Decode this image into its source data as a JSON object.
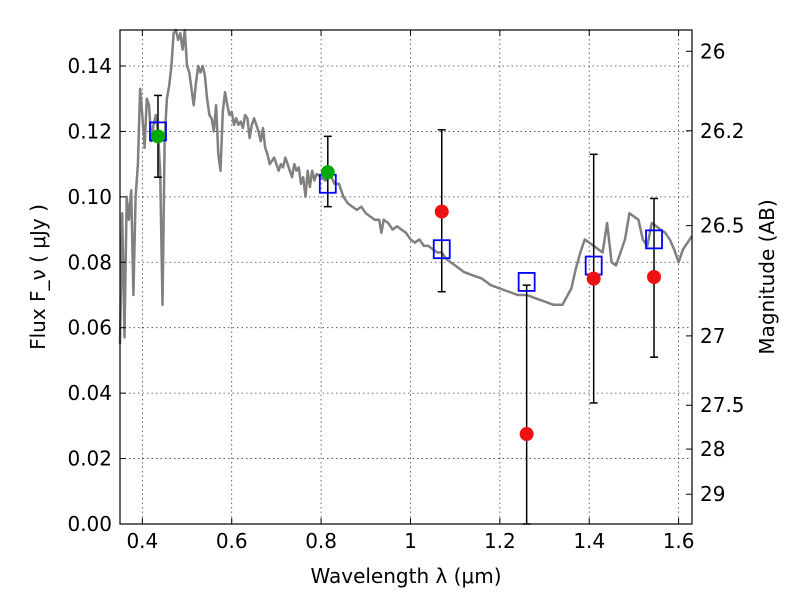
{
  "chart_data": {
    "type": "scatter",
    "xlabel": "Wavelength  λ (μm)",
    "ylabel": "Flux  F_ν  ( μJy )",
    "ylabel_right": "Magnitude (AB)",
    "xlim": [
      0.35,
      1.63
    ],
    "ylim": [
      0.0,
      0.151
    ],
    "grid": true,
    "x_ticks": [
      0.4,
      0.6,
      0.8,
      1.0,
      1.2,
      1.4,
      1.6
    ],
    "x_tick_labels": [
      "0.4",
      "0.6",
      "0.8",
      "1",
      "1.2",
      "1.4",
      "1.6"
    ],
    "y_ticks": [
      0.0,
      0.02,
      0.04,
      0.06,
      0.08,
      0.1,
      0.12,
      0.14
    ],
    "y_tick_labels": [
      "0.00",
      "0.02",
      "0.04",
      "0.06",
      "0.08",
      "0.10",
      "0.12",
      "0.14"
    ],
    "right_ticks": [
      {
        "label": "26",
        "flux": 0.1445
      },
      {
        "label": "26.2",
        "flux": 0.1202
      },
      {
        "label": "26.5",
        "flux": 0.0912
      },
      {
        "label": "27",
        "flux": 0.0575
      },
      {
        "label": "27.5",
        "flux": 0.0363
      },
      {
        "label": "28",
        "flux": 0.0229
      },
      {
        "label": "29",
        "flux": 0.0091
      }
    ],
    "colors": {
      "model": "#808080",
      "green": "#00aa00",
      "red": "#ee1111",
      "box": "#0000ff",
      "errorbar": "#000000"
    },
    "series": [
      {
        "kind": "line",
        "points": [
          [
            0.35,
            0.055
          ],
          [
            0.355,
            0.095
          ],
          [
            0.36,
            0.057
          ],
          [
            0.365,
            0.1
          ],
          [
            0.37,
            0.093
          ],
          [
            0.375,
            0.102
          ],
          [
            0.38,
            0.07
          ],
          [
            0.385,
            0.1
          ],
          [
            0.39,
            0.11
          ],
          [
            0.395,
            0.133
          ],
          [
            0.4,
            0.125
          ],
          [
            0.405,
            0.115
          ],
          [
            0.41,
            0.13
          ],
          [
            0.415,
            0.128
          ],
          [
            0.42,
            0.117
          ],
          [
            0.425,
            0.122
          ],
          [
            0.43,
            0.125
          ],
          [
            0.435,
            0.12
          ],
          [
            0.44,
            0.107
          ],
          [
            0.445,
            0.067
          ],
          [
            0.45,
            0.118
          ],
          [
            0.455,
            0.13
          ],
          [
            0.46,
            0.134
          ],
          [
            0.465,
            0.14
          ],
          [
            0.47,
            0.15
          ],
          [
            0.475,
            0.152
          ],
          [
            0.48,
            0.148
          ],
          [
            0.485,
            0.15
          ],
          [
            0.49,
            0.145
          ],
          [
            0.495,
            0.151
          ],
          [
            0.5,
            0.14
          ],
          [
            0.505,
            0.138
          ],
          [
            0.51,
            0.133
          ],
          [
            0.515,
            0.128
          ],
          [
            0.52,
            0.135
          ],
          [
            0.525,
            0.14
          ],
          [
            0.53,
            0.138
          ],
          [
            0.535,
            0.14
          ],
          [
            0.54,
            0.137
          ],
          [
            0.545,
            0.13
          ],
          [
            0.55,
            0.125
          ],
          [
            0.555,
            0.124
          ],
          [
            0.56,
            0.12
          ],
          [
            0.565,
            0.128
          ],
          [
            0.57,
            0.113
          ],
          [
            0.575,
            0.108
          ],
          [
            0.58,
            0.126
          ],
          [
            0.585,
            0.132
          ],
          [
            0.59,
            0.128
          ],
          [
            0.595,
            0.125
          ],
          [
            0.6,
            0.126
          ],
          [
            0.605,
            0.122
          ],
          [
            0.61,
            0.124
          ],
          [
            0.615,
            0.122
          ],
          [
            0.62,
            0.123
          ],
          [
            0.625,
            0.121
          ],
          [
            0.63,
            0.125
          ],
          [
            0.635,
            0.124
          ],
          [
            0.64,
            0.118
          ],
          [
            0.645,
            0.122
          ],
          [
            0.65,
            0.124
          ],
          [
            0.655,
            0.122
          ],
          [
            0.66,
            0.12
          ],
          [
            0.665,
            0.117
          ],
          [
            0.67,
            0.121
          ],
          [
            0.675,
            0.115
          ],
          [
            0.68,
            0.113
          ],
          [
            0.685,
            0.11
          ],
          [
            0.69,
            0.111
          ],
          [
            0.695,
            0.112
          ],
          [
            0.7,
            0.11
          ],
          [
            0.705,
            0.108
          ],
          [
            0.71,
            0.11
          ],
          [
            0.715,
            0.109
          ],
          [
            0.72,
            0.112
          ],
          [
            0.725,
            0.11
          ],
          [
            0.73,
            0.108
          ],
          [
            0.735,
            0.106
          ],
          [
            0.74,
            0.11
          ],
          [
            0.745,
            0.108
          ],
          [
            0.75,
            0.109
          ],
          [
            0.755,
            0.104
          ],
          [
            0.76,
            0.106
          ],
          [
            0.765,
            0.1
          ],
          [
            0.77,
            0.108
          ],
          [
            0.775,
            0.103
          ],
          [
            0.78,
            0.108
          ],
          [
            0.785,
            0.105
          ],
          [
            0.79,
            0.107
          ],
          [
            0.8,
            0.106
          ],
          [
            0.81,
            0.105
          ],
          [
            0.82,
            0.107
          ],
          [
            0.83,
            0.104
          ],
          [
            0.84,
            0.104
          ],
          [
            0.85,
            0.1
          ],
          [
            0.86,
            0.098
          ],
          [
            0.87,
            0.097
          ],
          [
            0.88,
            0.096
          ],
          [
            0.89,
            0.097
          ],
          [
            0.9,
            0.095
          ],
          [
            0.91,
            0.094
          ],
          [
            0.92,
            0.093
          ],
          [
            0.93,
            0.093
          ],
          [
            0.935,
            0.089
          ],
          [
            0.94,
            0.093
          ],
          [
            0.95,
            0.092
          ],
          [
            0.96,
            0.09
          ],
          [
            0.97,
            0.091
          ],
          [
            0.98,
            0.09
          ],
          [
            0.99,
            0.089
          ],
          [
            1.0,
            0.087
          ],
          [
            1.01,
            0.086
          ],
          [
            1.02,
            0.087
          ],
          [
            1.03,
            0.085
          ],
          [
            1.04,
            0.085
          ],
          [
            1.05,
            0.084
          ],
          [
            1.06,
            0.083
          ],
          [
            1.07,
            0.083
          ],
          [
            1.08,
            0.081
          ],
          [
            1.09,
            0.08
          ],
          [
            1.1,
            0.079
          ],
          [
            1.12,
            0.077
          ],
          [
            1.14,
            0.076
          ],
          [
            1.16,
            0.075
          ],
          [
            1.18,
            0.073
          ],
          [
            1.2,
            0.072
          ],
          [
            1.22,
            0.071
          ],
          [
            1.24,
            0.07
          ],
          [
            1.26,
            0.07
          ],
          [
            1.28,
            0.069
          ],
          [
            1.3,
            0.068
          ],
          [
            1.32,
            0.067
          ],
          [
            1.34,
            0.067
          ],
          [
            1.36,
            0.072
          ],
          [
            1.37,
            0.078
          ],
          [
            1.38,
            0.083
          ],
          [
            1.39,
            0.087
          ],
          [
            1.4,
            0.086
          ],
          [
            1.41,
            0.085
          ],
          [
            1.42,
            0.084
          ],
          [
            1.43,
            0.083
          ],
          [
            1.44,
            0.092
          ],
          [
            1.45,
            0.08
          ],
          [
            1.46,
            0.079
          ],
          [
            1.47,
            0.083
          ],
          [
            1.48,
            0.087
          ],
          [
            1.49,
            0.095
          ],
          [
            1.5,
            0.094
          ],
          [
            1.51,
            0.093
          ],
          [
            1.52,
            0.087
          ],
          [
            1.53,
            0.085
          ],
          [
            1.54,
            0.092
          ],
          [
            1.55,
            0.091
          ],
          [
            1.56,
            0.09
          ],
          [
            1.57,
            0.089
          ],
          [
            1.58,
            0.087
          ],
          [
            1.59,
            0.084
          ],
          [
            1.6,
            0.08
          ],
          [
            1.61,
            0.084
          ],
          [
            1.63,
            0.088
          ]
        ]
      },
      {
        "kind": "boxes",
        "points": [
          [
            0.435,
            0.12
          ],
          [
            0.815,
            0.104
          ],
          [
            1.07,
            0.084
          ],
          [
            1.26,
            0.074
          ],
          [
            1.41,
            0.079
          ],
          [
            1.545,
            0.087
          ]
        ]
      },
      {
        "kind": "circles",
        "color": "green",
        "points": [
          [
            0.435,
            0.1185
          ],
          [
            0.815,
            0.1075
          ]
        ]
      },
      {
        "kind": "circles",
        "color": "red",
        "points": [
          [
            1.07,
            0.0955
          ],
          [
            1.26,
            0.0275
          ],
          [
            1.41,
            0.075
          ],
          [
            1.545,
            0.0755
          ]
        ]
      },
      {
        "kind": "errorbars",
        "points": [
          {
            "x": 0.435,
            "low": 0.106,
            "high": 0.131
          },
          {
            "x": 0.815,
            "low": 0.097,
            "high": 0.1185
          },
          {
            "x": 1.07,
            "low": 0.071,
            "high": 0.1205
          },
          {
            "x": 1.26,
            "low": 0.0,
            "high": 0.073
          },
          {
            "x": 1.41,
            "low": 0.037,
            "high": 0.113
          },
          {
            "x": 1.545,
            "low": 0.051,
            "high": 0.0995
          }
        ]
      }
    ]
  }
}
